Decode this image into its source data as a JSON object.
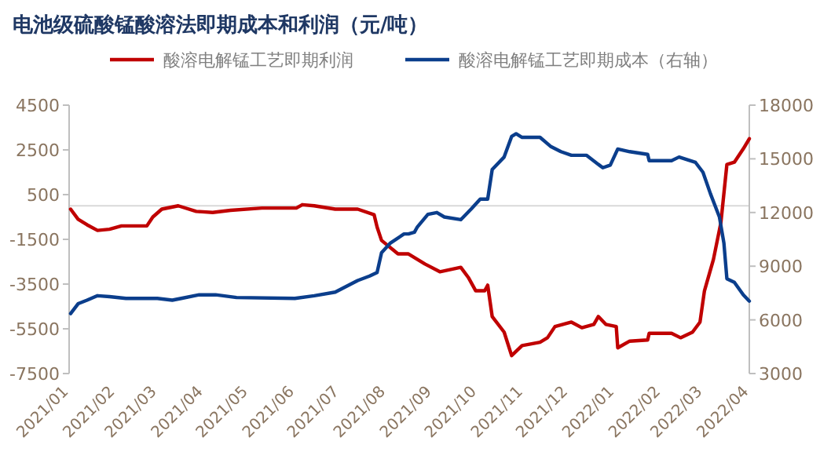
{
  "chart_data": {
    "type": "line",
    "title": "电池级硫酸锰酸溶法即期成本和利润（元/吨）",
    "legend": "top",
    "grid": false,
    "marker": "none",
    "line_style": "solid",
    "xlim": [
      "2021-01-01",
      "2022-04-01"
    ],
    "xticks": [
      {
        "value": "2021-01-01",
        "label": "2021/01"
      },
      {
        "value": "2021-02-01",
        "label": "2021/02"
      },
      {
        "value": "2021-03-01",
        "label": "2021/03"
      },
      {
        "value": "2021-04-01",
        "label": "2021/04"
      },
      {
        "value": "2021-05-01",
        "label": "2021/05"
      },
      {
        "value": "2021-06-01",
        "label": "2021/06"
      },
      {
        "value": "2021-07-01",
        "label": "2021/07"
      },
      {
        "value": "2021-08-01",
        "label": "2021/08"
      },
      {
        "value": "2021-09-01",
        "label": "2021/09"
      },
      {
        "value": "2021-10-01",
        "label": "2021/10"
      },
      {
        "value": "2021-11-01",
        "label": "2021/11"
      },
      {
        "value": "2021-12-01",
        "label": "2021/12"
      },
      {
        "value": "2022-01-01",
        "label": "2022/01"
      },
      {
        "value": "2022-02-01",
        "label": "2022/02"
      },
      {
        "value": "2022-03-01",
        "label": "2022/03"
      },
      {
        "value": "2022-04-01",
        "label": "2022/04"
      }
    ],
    "ylim": [
      -7500,
      4500
    ],
    "yticks": [
      -7500,
      -5500,
      -3500,
      -1500,
      500,
      2500,
      4500
    ],
    "y2lim": [
      3000,
      18000
    ],
    "y2ticks": [
      3000,
      6000,
      9000,
      12000,
      15000,
      18000
    ],
    "ref_lines": [
      {
        "axis": "y",
        "value": 0,
        "color": "#d9d9d9"
      }
    ],
    "series": [
      {
        "name": "酸溶电解锰工艺即期利润",
        "color": "#c00000",
        "x": [
          "2021-01-02",
          "2021-01-07",
          "2021-01-13",
          "2021-01-20",
          "2021-01-28",
          "2021-02-05",
          "2021-02-22",
          "2021-02-26",
          "2021-03-04",
          "2021-03-15",
          "2021-03-27",
          "2021-04-07",
          "2021-04-19",
          "2021-05-10",
          "2021-06-02",
          "2021-06-06",
          "2021-06-14",
          "2021-06-28",
          "2021-07-13",
          "2021-07-24",
          "2021-07-26",
          "2021-07-29",
          "2021-08-09",
          "2021-08-16",
          "2021-08-27",
          "2021-09-06",
          "2021-09-20",
          "2021-09-25",
          "2021-09-30",
          "2021-10-06",
          "2021-10-08",
          "2021-10-11",
          "2021-10-19",
          "2021-10-24",
          "2021-10-31",
          "2021-11-12",
          "2021-11-17",
          "2021-11-22",
          "2021-12-03",
          "2021-12-10",
          "2021-12-18",
          "2021-12-21",
          "2021-12-26",
          "2022-01-02",
          "2022-01-03",
          "2022-01-11",
          "2022-01-23",
          "2022-01-24",
          "2022-02-08",
          "2022-02-14",
          "2022-02-22",
          "2022-02-27",
          "2022-03-02",
          "2022-03-08",
          "2022-03-13",
          "2022-03-17",
          "2022-03-22",
          "2022-03-28",
          "2022-04-01"
        ],
        "values": [
          -150,
          -600,
          -850,
          -1100,
          -1050,
          -900,
          -900,
          -500,
          -150,
          0,
          -250,
          -300,
          -200,
          -100,
          -100,
          50,
          0,
          -150,
          -150,
          -400,
          -950,
          -1550,
          -2150,
          -2150,
          -2600,
          -2950,
          -2750,
          -3200,
          -3800,
          -3800,
          -3550,
          -4950,
          -5650,
          -6700,
          -6250,
          -6100,
          -5900,
          -5400,
          -5200,
          -5450,
          -5300,
          -4950,
          -5300,
          -5400,
          -6350,
          -6050,
          -6000,
          -5700,
          -5700,
          -5900,
          -5650,
          -5200,
          -3800,
          -2400,
          -750,
          1850,
          1950,
          2550,
          3000
        ]
      },
      {
        "name": "酸溶电解锰工艺即期成本（右轴）",
        "color": "#0b3e8c",
        "axis": "y2",
        "x": [
          "2021-01-02",
          "2021-01-07",
          "2021-01-13",
          "2021-01-20",
          "2021-01-28",
          "2021-02-08",
          "2021-03-01",
          "2021-03-11",
          "2021-03-17",
          "2021-03-29",
          "2021-04-09",
          "2021-04-23",
          "2021-06-01",
          "2021-06-14",
          "2021-06-28",
          "2021-07-13",
          "2021-07-21",
          "2021-07-26",
          "2021-07-29",
          "2021-08-04",
          "2021-08-13",
          "2021-08-16",
          "2021-08-20",
          "2021-08-22",
          "2021-08-29",
          "2021-09-04",
          "2021-09-09",
          "2021-09-20",
          "2021-09-27",
          "2021-10-03",
          "2021-10-08",
          "2021-10-11",
          "2021-10-19",
          "2021-10-24",
          "2021-10-27",
          "2021-10-31",
          "2021-11-12",
          "2021-11-19",
          "2021-11-26",
          "2021-12-03",
          "2021-12-13",
          "2021-12-24",
          "2021-12-29",
          "2022-01-03",
          "2022-01-11",
          "2022-01-23",
          "2022-01-24",
          "2022-02-08",
          "2022-02-13",
          "2022-02-24",
          "2022-03-01",
          "2022-03-06",
          "2022-03-12",
          "2022-03-15",
          "2022-03-17",
          "2022-03-22",
          "2022-03-28",
          "2022-04-01"
        ],
        "values": [
          6350,
          6900,
          7100,
          7350,
          7300,
          7200,
          7200,
          7100,
          7200,
          7400,
          7400,
          7250,
          7200,
          7350,
          7550,
          8200,
          8450,
          8650,
          9750,
          10300,
          10800,
          10800,
          10900,
          11200,
          11900,
          12000,
          11750,
          11600,
          12200,
          12750,
          12750,
          14400,
          15100,
          16250,
          16400,
          16200,
          16200,
          15700,
          15400,
          15200,
          15200,
          14500,
          14650,
          15550,
          15400,
          15250,
          14900,
          14900,
          15100,
          14800,
          14250,
          13050,
          11750,
          10300,
          8300,
          8100,
          7400,
          7050
        ]
      }
    ]
  }
}
